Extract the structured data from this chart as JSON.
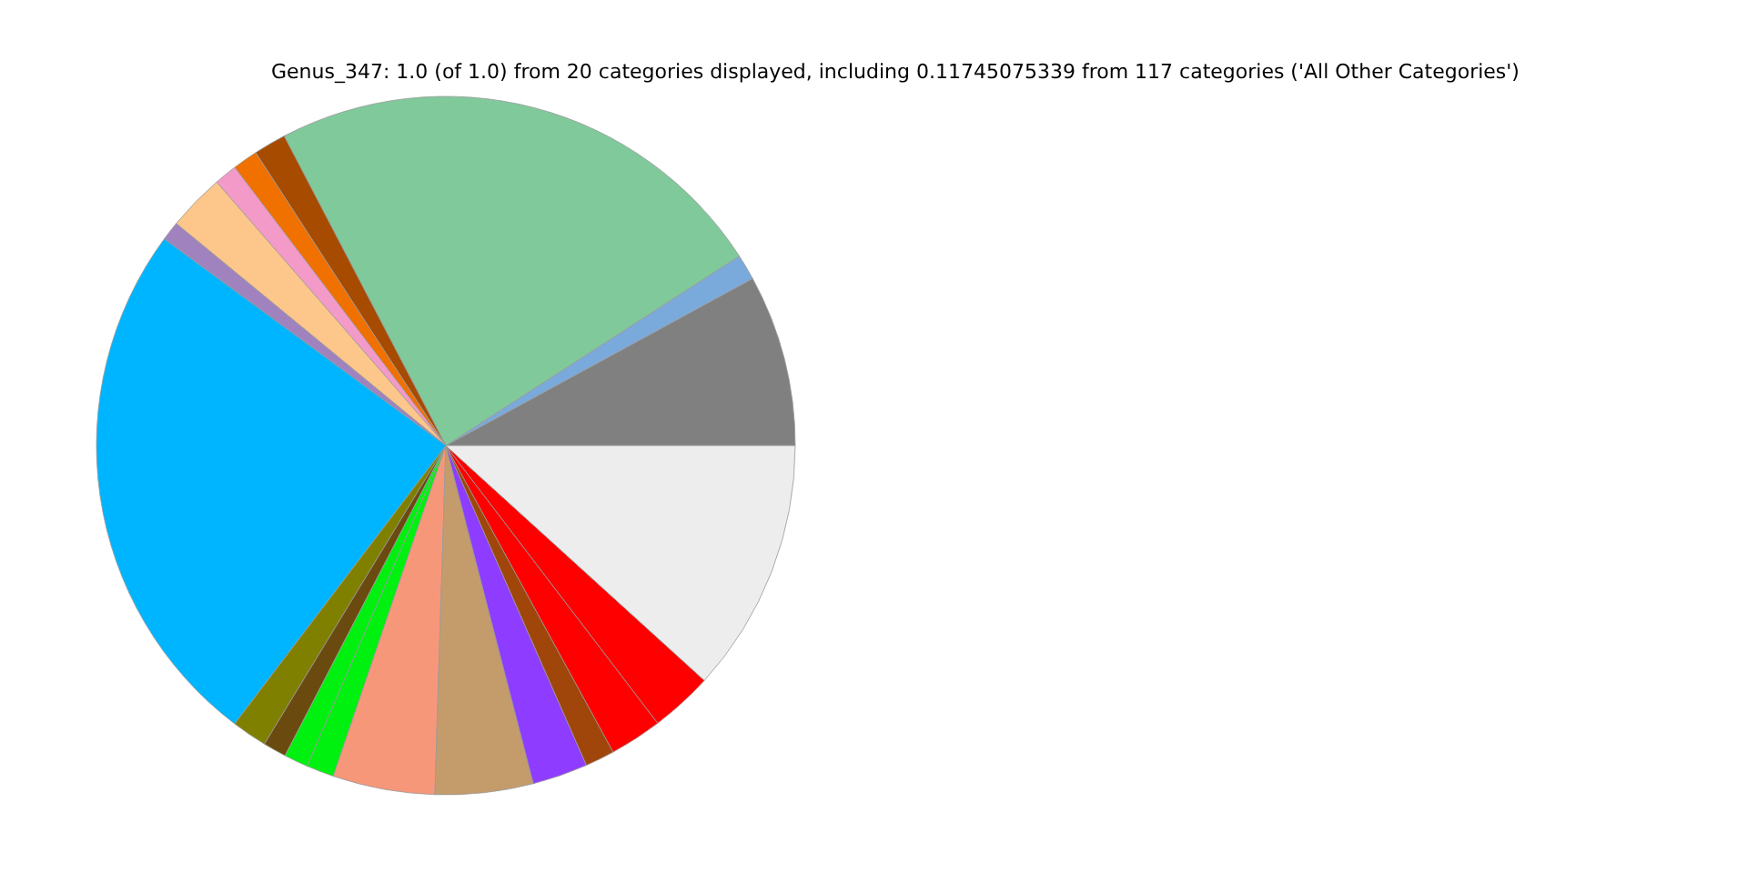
{
  "chart_data": {
    "type": "pie",
    "title": "Genus_347: 1.0 (of 1.0) from 20 categories displayed, including 0.11745075339 from 117 categories ('All Other Categories')",
    "categories": [
      null,
      null,
      null,
      null,
      null,
      null,
      null,
      null,
      null,
      null,
      null,
      null,
      null,
      null,
      null,
      null,
      null,
      null,
      null,
      null
    ],
    "values": [
      7.94,
      1.19,
      23.53,
      1.5,
      1.17,
      1.06,
      2.64,
      0.89,
      24.75,
      1.64,
      1.08,
      1.11,
      1.28,
      4.72,
      4.53,
      2.56,
      1.36,
      2.42,
      2.89,
      11.74
    ],
    "colors": [
      "#808080",
      "#7aaadc",
      "#80c99b",
      "#a64b00",
      "#f07000",
      "#f49ac8",
      "#fdc68a",
      "#a083be",
      "#00b5ff",
      "#808000",
      "#6b4a10",
      "#00f010",
      "#00f010",
      "#f7977a",
      "#c49c6b",
      "#8e3cff",
      "#a0460a",
      "#ff0000",
      "#ff0000",
      "#ededed"
    ],
    "legend": false
  }
}
